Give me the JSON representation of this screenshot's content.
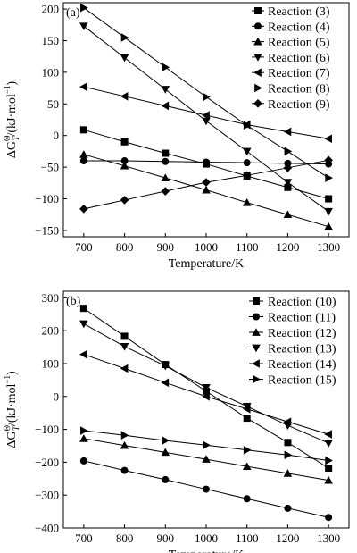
{
  "chart_data": [
    {
      "type": "line",
      "panel_label": "(a)",
      "title": "",
      "xlabel": "Temperature/K",
      "ylabel_main": "ΔG",
      "ylabel_sup": "Θ",
      "ylabel_sub": "T",
      "ylabel_units": "/(kJ·mol",
      "ylabel_units_sup": "−1",
      "ylabel_units_close": ")",
      "xlim": [
        650,
        1350
      ],
      "ylim": [
        -160,
        210
      ],
      "xticks": [
        700,
        800,
        900,
        1000,
        1100,
        1200,
        1300
      ],
      "yticks": [
        -150,
        -100,
        -50,
        0,
        50,
        100,
        150,
        200
      ],
      "x": [
        700,
        800,
        900,
        1000,
        1100,
        1200,
        1300
      ],
      "legend_position": "top-right",
      "series": [
        {
          "name": "Reaction (3)",
          "marker": "square",
          "values": [
            9,
            -10,
            -28,
            -45,
            -64,
            -82,
            -100
          ]
        },
        {
          "name": "Reaction (4)",
          "marker": "circle",
          "values": [
            -40,
            -40,
            -41,
            -42,
            -43,
            -44,
            -45
          ]
        },
        {
          "name": "Reaction (5)",
          "marker": "triangle-up",
          "values": [
            -30,
            -48,
            -67,
            -86,
            -106,
            -125,
            -144
          ]
        },
        {
          "name": "Reaction (6)",
          "marker": "triangle-down",
          "values": [
            173,
            123,
            73,
            23,
            -25,
            -74,
            -120
          ]
        },
        {
          "name": "Reaction (7)",
          "marker": "triangle-left",
          "values": [
            77,
            62,
            47,
            32,
            17,
            6,
            -5
          ]
        },
        {
          "name": "Reaction (8)",
          "marker": "triangle-right",
          "values": [
            202,
            155,
            108,
            61,
            16,
            -25,
            -67
          ]
        },
        {
          "name": "Reaction (9)",
          "marker": "diamond",
          "values": [
            -116,
            -102,
            -88,
            -74,
            -63,
            -51,
            -39
          ]
        }
      ]
    },
    {
      "type": "line",
      "panel_label": "(b)",
      "title": "",
      "xlabel": "Temperature/K",
      "ylabel_main": "ΔG",
      "ylabel_sup": "Θ",
      "ylabel_sub": "T",
      "ylabel_units": "/(kJ·mol",
      "ylabel_units_sup": "−1",
      "ylabel_units_close": ")",
      "xlim": [
        650,
        1350
      ],
      "ylim": [
        -400,
        320
      ],
      "xticks": [
        700,
        800,
        900,
        1000,
        1100,
        1200,
        1300
      ],
      "yticks": [
        -400,
        -300,
        -200,
        -100,
        0,
        100,
        200,
        300
      ],
      "x": [
        700,
        800,
        900,
        1000,
        1100,
        1200,
        1300
      ],
      "legend_position": "top-right",
      "series": [
        {
          "name": "Reaction (10)",
          "marker": "square",
          "values": [
            268,
            183,
            97,
            16,
            -66,
            -140,
            -218
          ]
        },
        {
          "name": "Reaction (11)",
          "marker": "circle",
          "values": [
            -196,
            -225,
            -253,
            -282,
            -311,
            -340,
            -368
          ]
        },
        {
          "name": "Reaction (12)",
          "marker": "triangle-up",
          "values": [
            -128,
            -149,
            -170,
            -191,
            -213,
            -234,
            -255
          ]
        },
        {
          "name": "Reaction (13)",
          "marker": "triangle-down",
          "values": [
            221,
            152,
            93,
            27,
            -30,
            -88,
            -142
          ]
        },
        {
          "name": "Reaction (14)",
          "marker": "triangle-left",
          "values": [
            128,
            85,
            42,
            0,
            -38,
            -77,
            -115
          ]
        },
        {
          "name": "Reaction (15)",
          "marker": "triangle-right",
          "values": [
            -104,
            -118,
            -134,
            -148,
            -163,
            -178,
            -195
          ]
        }
      ]
    }
  ]
}
